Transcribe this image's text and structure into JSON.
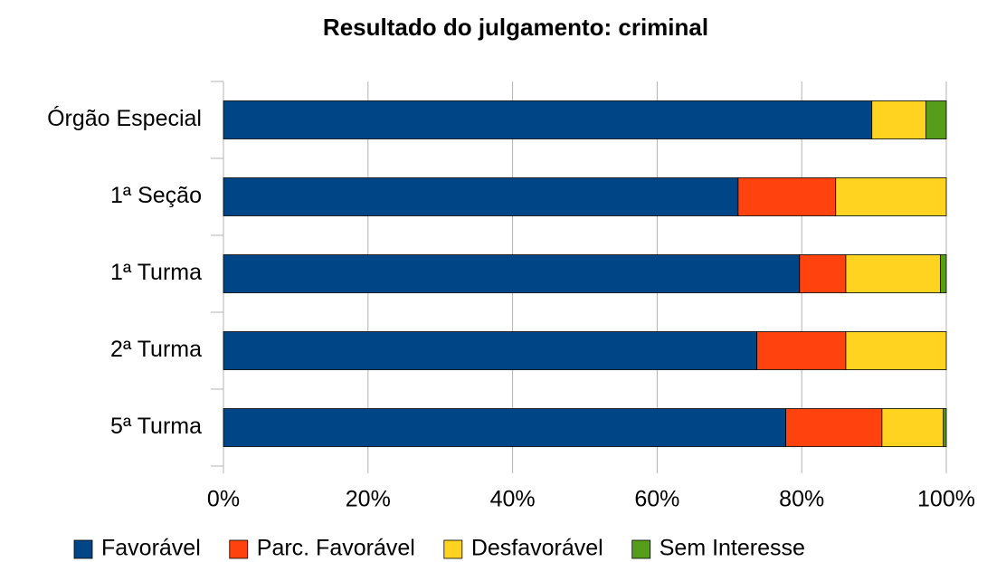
{
  "chart_data": {
    "type": "bar",
    "orientation": "horizontal",
    "stacked": true,
    "title": "Resultado do julgamento: criminal",
    "categories": [
      "Órgão Especial",
      "1ª Seção",
      "1ª Turma",
      "2ª Turma",
      "5ª Turma"
    ],
    "series": [
      {
        "name": "Favorável",
        "color": "#004586",
        "values": [
          89.7,
          71.2,
          79.7,
          73.8,
          77.8
        ]
      },
      {
        "name": "Parc. Favorável",
        "color": "#ff420e",
        "values": [
          0,
          13.5,
          6.4,
          12.3,
          13.3
        ]
      },
      {
        "name": "Desfavorável",
        "color": "#ffd320",
        "values": [
          7.5,
          15.3,
          13.1,
          13.9,
          8.5
        ]
      },
      {
        "name": "Sem Interesse",
        "color": "#579d1c",
        "values": [
          2.8,
          0,
          0.8,
          0,
          0.4
        ]
      }
    ],
    "xlim": [
      0,
      100
    ],
    "xticks": [
      {
        "value": 0,
        "label": "0%"
      },
      {
        "value": 20,
        "label": "20%"
      },
      {
        "value": 40,
        "label": "40%"
      },
      {
        "value": 60,
        "label": "60%"
      },
      {
        "value": 80,
        "label": "80%"
      },
      {
        "value": 100,
        "label": "100%"
      }
    ],
    "grid": true,
    "legend": "bottom"
  }
}
